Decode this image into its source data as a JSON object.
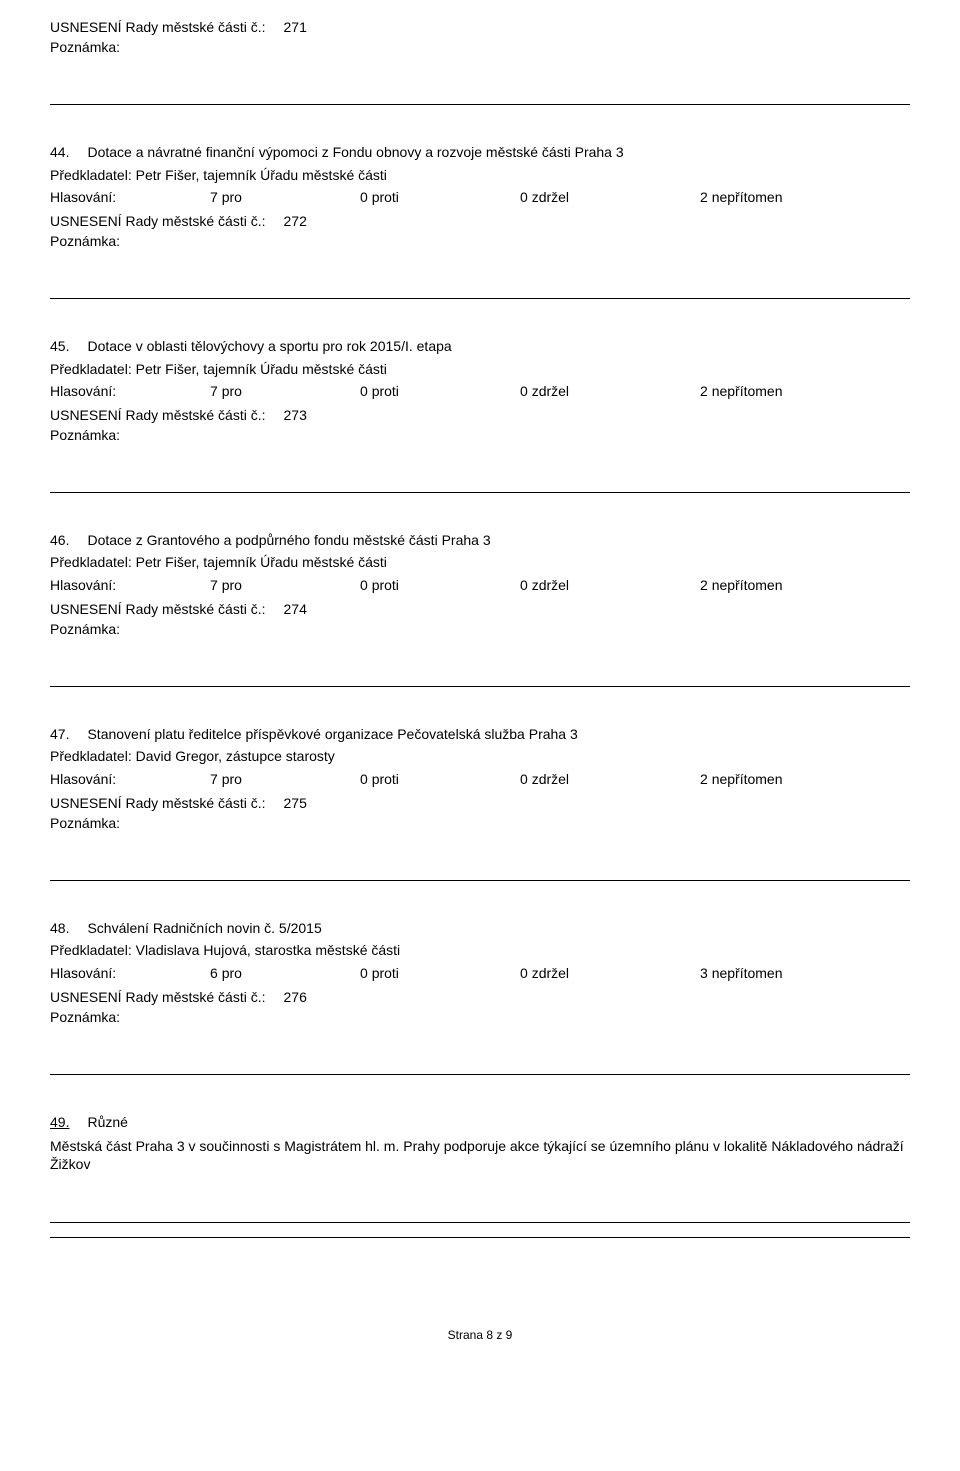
{
  "labels": {
    "usneseni": "USNESENÍ Rady městské části č.:",
    "poznamka": "Poznámka:",
    "predkladatel": "Předkladatel:",
    "hlasovani": "Hlasování:",
    "pro_suffix": "pro",
    "proti_suffix": "proti",
    "zdrzel_suffix": "zdržel",
    "nepritomen_suffix": "nepřítomen"
  },
  "top": {
    "resolution": "271"
  },
  "items": [
    {
      "num": "44.",
      "title": "Dotace a návratné finanční výpomoci z Fondu obnovy a rozvoje městské části Praha 3",
      "predkladatel": "Petr Fišer, tajemník Úřadu městské části",
      "pro": "7",
      "proti": "0",
      "zdrzel": "0",
      "nepritomen": "2",
      "resolution": "272"
    },
    {
      "num": "45.",
      "title": "Dotace v oblasti tělovýchovy a sportu pro rok 2015/I. etapa",
      "predkladatel": "Petr Fišer, tajemník Úřadu městské části",
      "pro": "7",
      "proti": "0",
      "zdrzel": "0",
      "nepritomen": "2",
      "resolution": "273"
    },
    {
      "num": "46.",
      "title": "Dotace z Grantového a podpůrného fondu městské části Praha 3",
      "predkladatel": "Petr Fišer, tajemník Úřadu městské části",
      "pro": "7",
      "proti": "0",
      "zdrzel": "0",
      "nepritomen": "2",
      "resolution": "274"
    },
    {
      "num": "47.",
      "title": "Stanovení platu ředitelce příspěvkové organizace Pečovatelská služba Praha 3",
      "predkladatel": "David Gregor, zástupce starosty",
      "pro": "7",
      "proti": "0",
      "zdrzel": "0",
      "nepritomen": "2",
      "resolution": "275"
    },
    {
      "num": "48.",
      "title": "Schválení Radničních novin č. 5/2015",
      "predkladatel": "Vladislava Hujová, starostka městské části",
      "pro": "6",
      "proti": "0",
      "zdrzel": "0",
      "nepritomen": "3",
      "resolution": "276"
    }
  ],
  "ruzne": {
    "num": "49.",
    "title": "Různé",
    "body": "Městská část Praha 3 v součinnosti s Magistrátem hl. m. Prahy podporuje akce týkající se územního plánu v lokalitě Nákladového nádraží Žižkov"
  },
  "footer": "Strana 8 z 9"
}
